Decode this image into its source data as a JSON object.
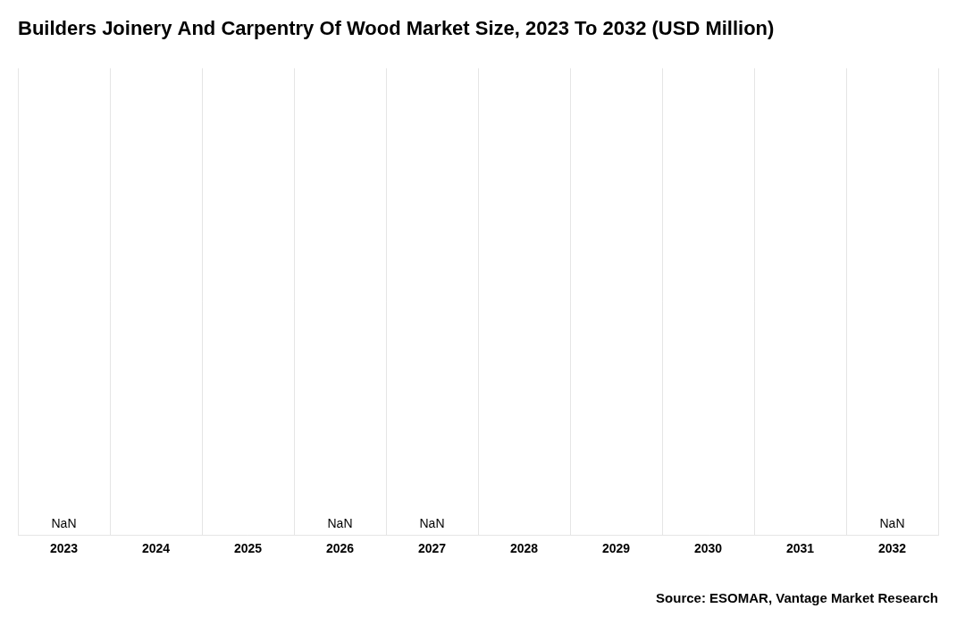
{
  "chart_data": {
    "type": "bar",
    "title": "Builders Joinery And Carpentry Of Wood Market Size, 2023 To 2032 (USD Million)",
    "categories": [
      "2023",
      "2024",
      "2025",
      "2026",
      "2027",
      "2028",
      "2029",
      "2030",
      "2031",
      "2032"
    ],
    "values": [
      0,
      0,
      0,
      0,
      0,
      0,
      0,
      0,
      0,
      0
    ],
    "color": "#4472c4",
    "ylim": [
      0,
      1
    ],
    "grid": true,
    "tick_labels": "x",
    "annotations": [
      {
        "text": "NaN",
        "x": "2023"
      },
      {
        "text": "NaN",
        "x": "2026"
      },
      {
        "text": "NaN",
        "x": "2027"
      },
      {
        "text": "NaN",
        "x": "2032"
      }
    ],
    "source": "Source: ESOMAR, Vantage Market Research"
  }
}
